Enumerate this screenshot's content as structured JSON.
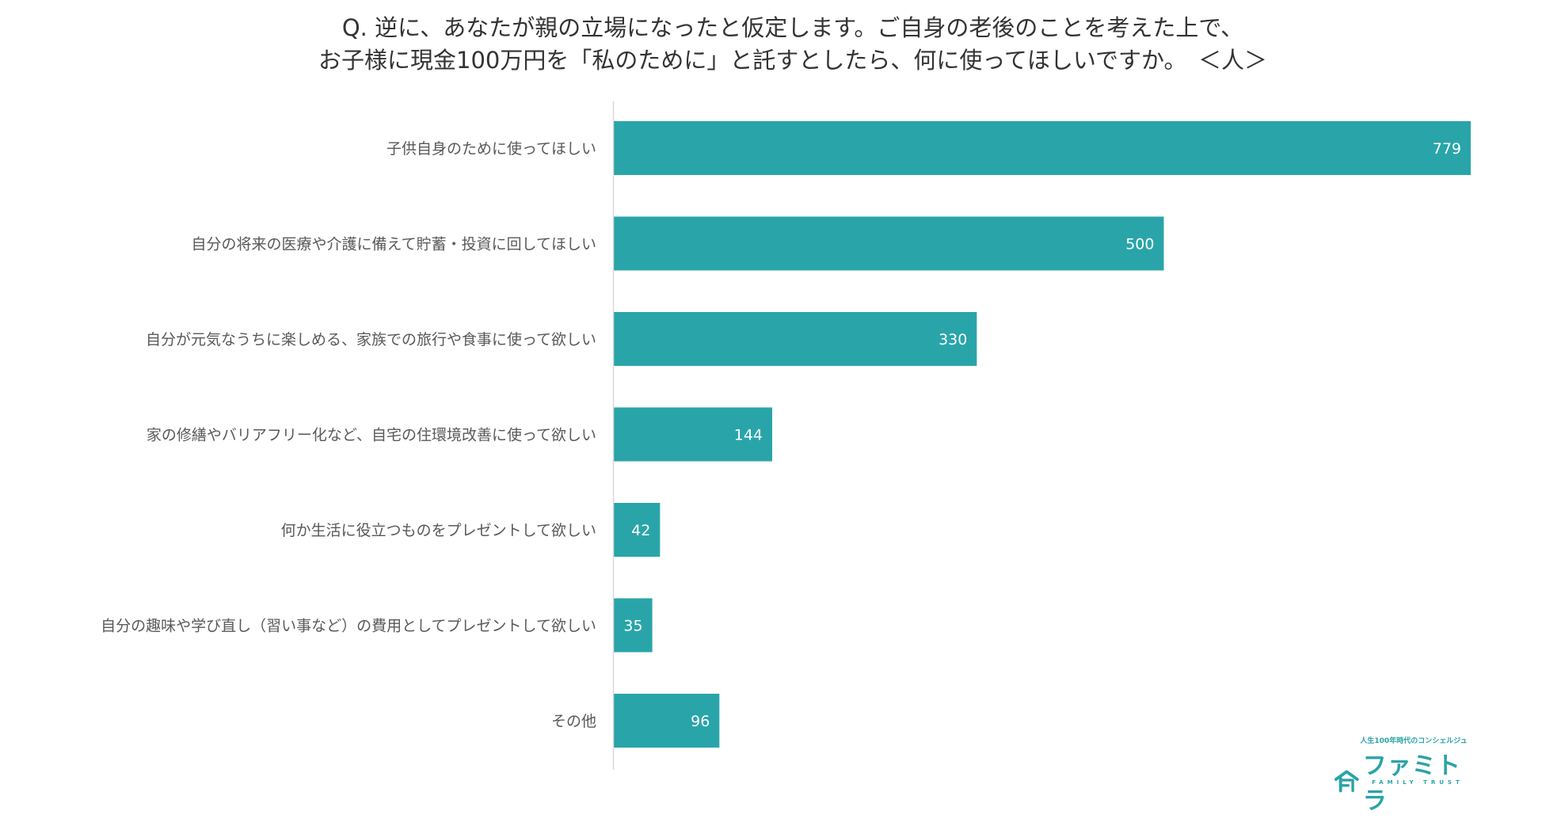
{
  "chart_data": {
    "type": "bar",
    "orientation": "horizontal",
    "title": [
      "Q. 逆に、あなたが親の立場になったと仮定します。ご自身の老後のことを考えた上で、",
      "お子様に現金100万円を「私のために」と託すとしたら、何に使ってほしいですか。　＜人＞"
    ],
    "categories": [
      "子供自身のために使ってほしい",
      "自分の将来の医療や介護に備えて貯蓄・投資に回してほしい",
      "自分が元気なうちに楽しめる、家族での旅行や食事に使って欲しい",
      "家の修繕やバリアフリー化など、自宅の住環境改善に使って欲しい",
      "何か生活に役立つものをプレゼントして欲しい",
      "自分の趣味や学び直し（習い事など）の費用としてプレゼントして欲しい",
      "その他"
    ],
    "values": [
      779,
      500,
      330,
      144,
      42,
      35,
      96
    ],
    "xlim": [
      0,
      800
    ],
    "grid": false,
    "data_labels": "inside-end",
    "colors": {
      "bar": "#29A5A9",
      "axis": "#D9D9D9",
      "category_text": "#595959",
      "title_text": "#333333",
      "data_label_text": "#FFFFFF"
    }
  },
  "logo": {
    "tagline": "人生100年時代のコンシェルジュ",
    "name": "ファミトラ",
    "subtitle": "FAMILY TRUST",
    "icon": "house-f-icon",
    "color": "#2AA3A7"
  }
}
